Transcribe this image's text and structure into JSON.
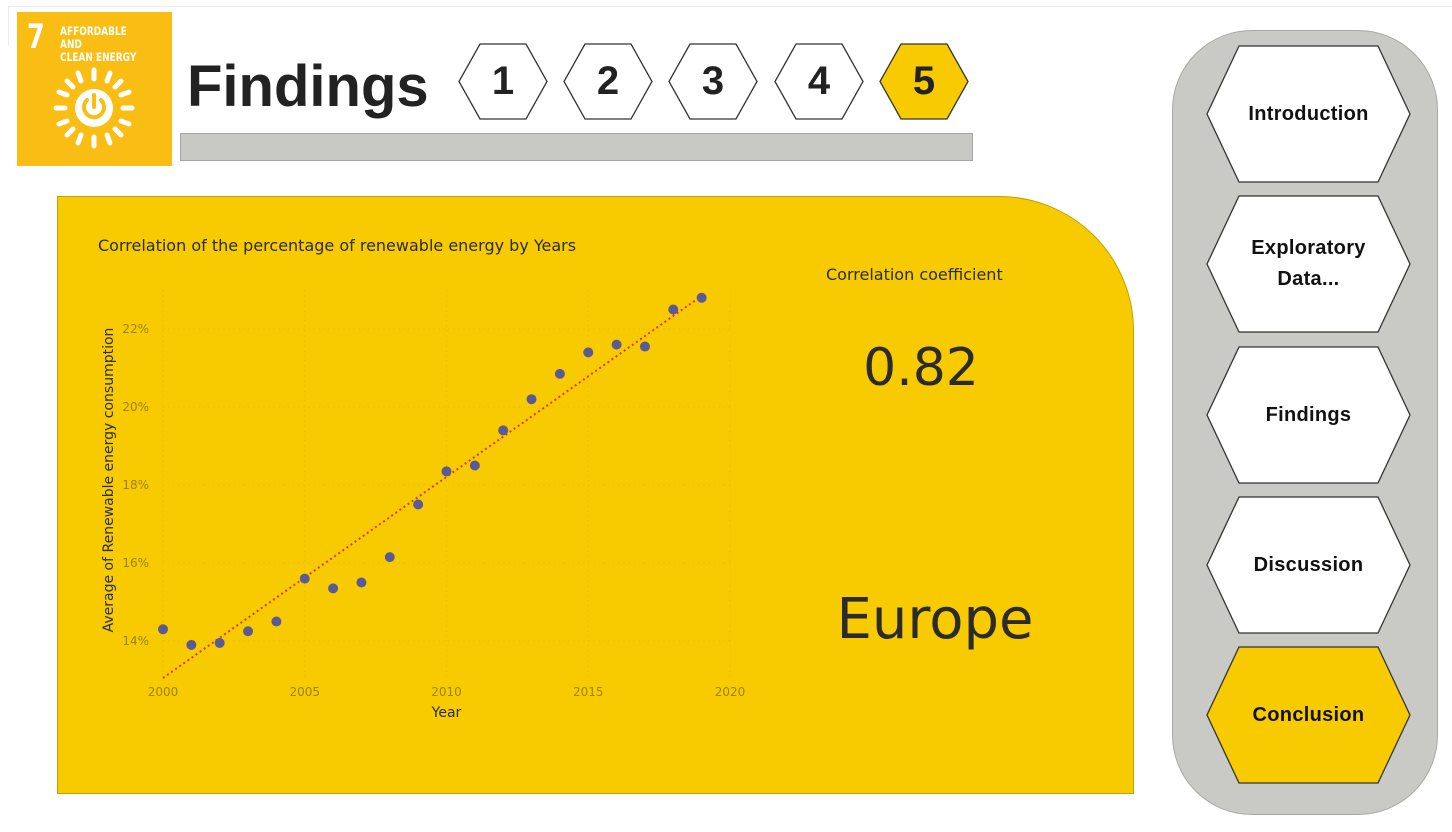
{
  "badge": {
    "number": "7",
    "text": "AFFORDABLE AND\nCLEAN ENERGY",
    "icon": "sun-power-icon",
    "color": "#f9bd13"
  },
  "page": {
    "title": "Findings"
  },
  "steps": [
    {
      "label": "1",
      "active": false
    },
    {
      "label": "2",
      "active": false
    },
    {
      "label": "3",
      "active": false
    },
    {
      "label": "4",
      "active": false
    },
    {
      "label": "5",
      "active": true
    }
  ],
  "card": {
    "chart_title": "Correlation of the percentage of renewable energy by Years",
    "corr_label": "Correlation coefficient",
    "corr_value": "0.82",
    "region": "Europe"
  },
  "chart_data": {
    "type": "scatter",
    "title": "Correlation of the percentage of renewable energy by Years",
    "xlabel": "Year",
    "ylabel": "Average of Renewable energy consumption",
    "xlim": [
      2000,
      2020
    ],
    "ylim": [
      13.0,
      23.0
    ],
    "x_ticks": [
      "2000",
      "2005",
      "2010",
      "2015",
      "2020"
    ],
    "y_ticks": [
      "14%",
      "16%",
      "18%",
      "20%",
      "22%"
    ],
    "grid": true,
    "x": [
      2000,
      2001,
      2002,
      2003,
      2004,
      2005,
      2006,
      2007,
      2008,
      2009,
      2010,
      2011,
      2012,
      2013,
      2014,
      2015,
      2016,
      2017,
      2018,
      2019
    ],
    "y": [
      14.3,
      13.9,
      13.95,
      14.25,
      14.5,
      15.6,
      15.35,
      15.5,
      16.15,
      17.5,
      18.35,
      18.5,
      19.4,
      20.2,
      20.85,
      21.4,
      21.6,
      21.55,
      22.5,
      22.8
    ],
    "trendline": {
      "x": [
        2000,
        2019
      ],
      "y": [
        13.05,
        22.85
      ],
      "style": "dotted",
      "color": "#d9363e"
    },
    "point_color": "#5b5a96"
  },
  "nav": [
    {
      "label": "Introduction",
      "active": false
    },
    {
      "label": "Exploratory\n Data...",
      "active": false
    },
    {
      "label": "Findings",
      "active": false
    },
    {
      "label": "Discussion",
      "active": false
    },
    {
      "label": "Conclusion",
      "active": true
    }
  ],
  "colors": {
    "accent": "#f7cb00",
    "panel": "#c9c9c5",
    "inactive": "#ffffff"
  }
}
